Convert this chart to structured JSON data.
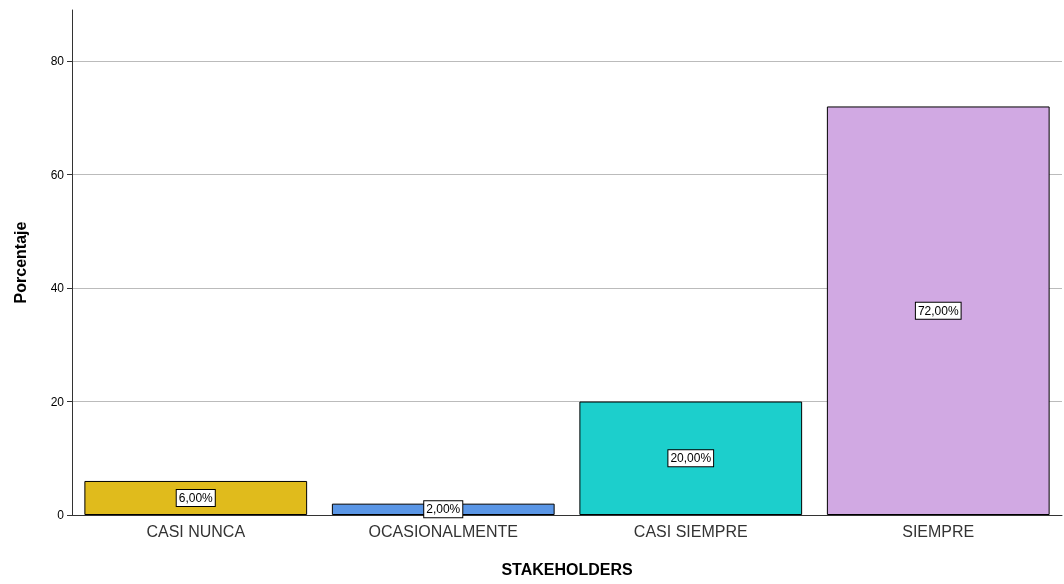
{
  "chart_data": {
    "type": "bar",
    "xlabel": "STAKEHOLDERS",
    "ylabel": "Porcentaje",
    "categories": [
      "CASI NUNCA",
      "OCASIONALMENTE",
      "CASI SIEMPRE",
      "SIEMPRE"
    ],
    "values": [
      6,
      2,
      20,
      72
    ],
    "colors": [
      "#e0bb1c",
      "#5a96e6",
      "#1ccfcc",
      "#d1a9e3"
    ],
    "value_labels": [
      "6,00%",
      "2,00%",
      "20,00%",
      "72,00%"
    ],
    "ylim": [
      0,
      89
    ],
    "yticks": [
      0,
      20,
      40,
      60,
      80
    ],
    "grid": "y"
  }
}
